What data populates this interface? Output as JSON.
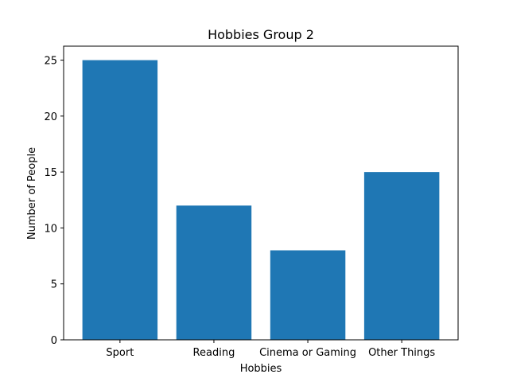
{
  "chart_data": {
    "type": "bar",
    "title": "Hobbies Group 2",
    "xlabel": "Hobbies",
    "ylabel": "Number of People",
    "categories": [
      "Sport",
      "Reading",
      "Cinema or Gaming",
      "Other Things"
    ],
    "values": [
      25,
      12,
      8,
      15
    ],
    "ylim": [
      0,
      26.25
    ],
    "yticks": [
      0,
      5,
      10,
      15,
      20,
      25
    ],
    "grid": false,
    "bar_color": "#1f77b4"
  }
}
